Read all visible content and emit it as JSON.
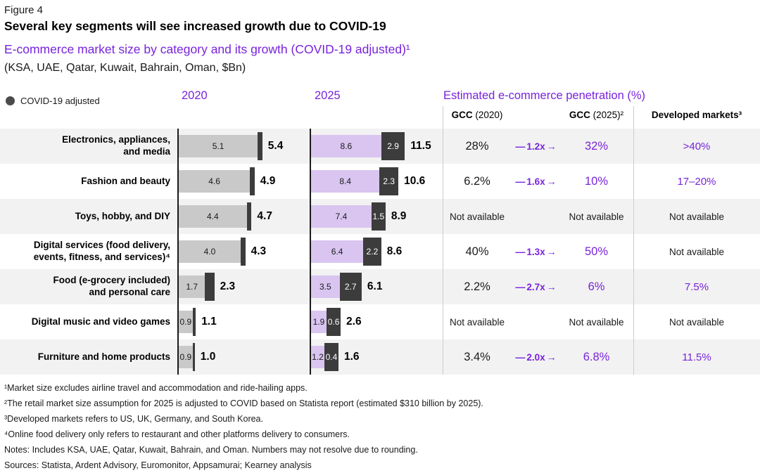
{
  "figure_label": "Figure 4",
  "title": "Several key segments will see increased growth due to COVID-19",
  "subtitle": "E-commerce market size by category and its growth (COVID-19 adjusted)¹",
  "scope_line": "(KSA, UAE, Qatar, Kuwait, Bahrain, Oman, $Bn)",
  "legend": {
    "covid_adjusted": "COVID-19 adjusted"
  },
  "column_headers": {
    "y2020": "2020",
    "y2025": "2025",
    "penetration": "Estimated e-commerce penetration (%)",
    "gcc2020_strong": "GCC",
    "gcc2020_rest": " (2020)",
    "gcc2025_strong": "GCC",
    "gcc2025_rest": " (2025)²",
    "developed": "Developed markets³"
  },
  "growth_arrow": {
    "dash": "—",
    "arrow": "→"
  },
  "labels": {
    "not_available": "Not available"
  },
  "colors": {
    "accent_purple": "#7823dc",
    "bar_light_purple": "#d9c5f0",
    "bar_gray": "#c9c9ca",
    "bar_dark": "#3c3c3c",
    "row_alt_bg": "#f2f2f2"
  },
  "chart_data": {
    "type": "bar",
    "title": "E-commerce market size by category and its growth (COVID-19 adjusted)",
    "unit": "$Bn",
    "region": "KSA, UAE, Qatar, Kuwait, Bahrain, Oman",
    "categories": [
      "Electronics, appliances, and media",
      "Fashion and beauty",
      "Toys, hobby, and DIY",
      "Digital services (food delivery, events, fitness, and services)⁴",
      "Food (e-grocery included) and personal care",
      "Digital music and video games",
      "Furniture and home products"
    ],
    "category_display": [
      "Electronics, appliances,\nand media",
      "Fashion and beauty",
      "Toys, hobby, and DIY",
      "Digital services (food delivery,\nevents, fitness, and services)⁴",
      "Food (e-grocery included)\nand personal care",
      "Digital music and video games",
      "Furniture and home products"
    ],
    "series": [
      {
        "name": "2020 market size",
        "values": [
          5.1,
          4.6,
          4.4,
          4.0,
          1.7,
          0.9,
          0.9
        ]
      },
      {
        "name": "2020 total (COVID-19 adjusted)",
        "values": [
          5.4,
          4.9,
          4.7,
          4.3,
          2.3,
          1.1,
          1.0
        ]
      },
      {
        "name": "2025 market size",
        "values": [
          8.6,
          8.4,
          7.4,
          6.4,
          3.5,
          1.9,
          1.2
        ]
      },
      {
        "name": "2025 COVID-19 uplift",
        "values": [
          2.9,
          2.3,
          1.5,
          2.2,
          2.7,
          0.6,
          0.4
        ]
      },
      {
        "name": "2025 total (COVID-19 adjusted)",
        "values": [
          11.5,
          10.6,
          8.9,
          8.6,
          6.1,
          2.6,
          1.6
        ]
      }
    ],
    "penetration": {
      "gcc_2020": [
        "28%",
        "6.2%",
        "Not available",
        "40%",
        "2.2%",
        "Not available",
        "3.4%"
      ],
      "growth": [
        "1.2x",
        "1.6x",
        null,
        "1.3x",
        "2.7x",
        null,
        "2.0x"
      ],
      "gcc_2025": [
        "32%",
        "10%",
        "Not available",
        "50%",
        "6%",
        "Not available",
        "6.8%"
      ],
      "developed_markets": [
        ">40%",
        "17–20%",
        "Not available",
        "Not available",
        "7.5%",
        "Not available",
        "11.5%"
      ]
    }
  },
  "footnotes": [
    "¹Market size excludes airline travel and accommodation and ride-hailing apps.",
    "²The retail market size assumption for 2025 is adjusted to COVID based on Statista report (estimated $310 billion by 2025).",
    "³Developed markets refers to US, UK, Germany, and South Korea.",
    "⁴Online food delivery only refers to restaurant and other platforms delivery to consumers.",
    "Notes: Includes KSA, UAE, Qatar, Kuwait, Bahrain, and Oman. Numbers may not resolve due to rounding.",
    "Sources: Statista, Ardent Advisory, Euromonitor, Appsamurai; Kearney analysis"
  ]
}
